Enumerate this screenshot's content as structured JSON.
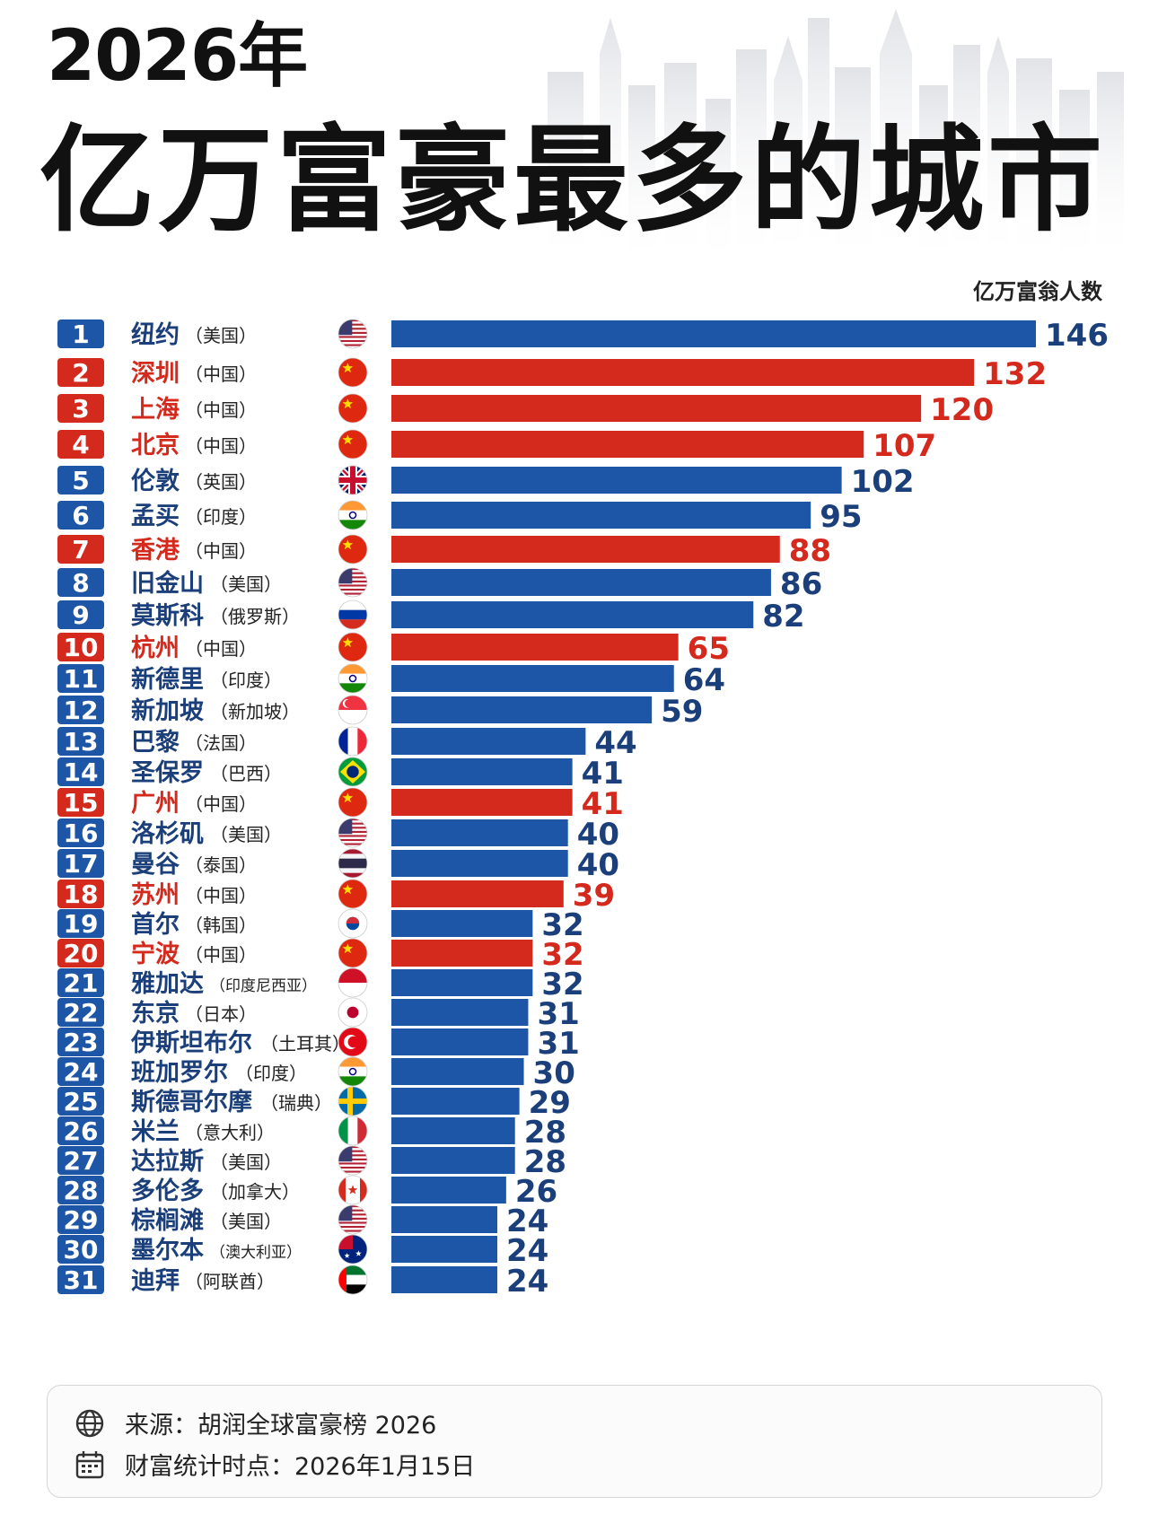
{
  "header": {
    "year_title": "2026年",
    "main_title": "亿万富豪最多的城市"
  },
  "chart_data": {
    "type": "bar",
    "orientation": "horizontal",
    "title": "2026年 亿万富豪最多的城市",
    "value_label": "亿万富翁人数",
    "xlim": [
      0,
      146
    ],
    "grid": false,
    "colors": {
      "china": "#d42a1e",
      "other": "#1d56a6"
    },
    "rows": [
      {
        "rank": "1",
        "city": "纽约",
        "country": "（美国）",
        "value": 146,
        "china": false,
        "flag": "us"
      },
      {
        "rank": "2",
        "city": "深圳",
        "country": "（中国）",
        "value": 132,
        "china": true,
        "flag": "cn"
      },
      {
        "rank": "3",
        "city": "上海",
        "country": "（中国）",
        "value": 120,
        "china": true,
        "flag": "cn"
      },
      {
        "rank": "4",
        "city": "北京",
        "country": "（中国）",
        "value": 107,
        "china": true,
        "flag": "cn"
      },
      {
        "rank": "5",
        "city": "伦敦",
        "country": "（英国）",
        "value": 102,
        "china": false,
        "flag": "uk"
      },
      {
        "rank": "6",
        "city": "孟买",
        "country": "（印度）",
        "value": 95,
        "china": false,
        "flag": "in"
      },
      {
        "rank": "7",
        "city": "香港",
        "country": "（中国）",
        "value": 88,
        "china": true,
        "flag": "cn"
      },
      {
        "rank": "8",
        "city": "旧金山",
        "country": "（美国）",
        "value": 86,
        "china": false,
        "flag": "us"
      },
      {
        "rank": "9",
        "city": "莫斯科",
        "country": "（俄罗斯）",
        "value": 82,
        "china": false,
        "flag": "ru"
      },
      {
        "rank": "10",
        "city": "杭州",
        "country": "（中国）",
        "value": 65,
        "china": true,
        "flag": "cn"
      },
      {
        "rank": "11",
        "city": "新德里",
        "country": "（印度）",
        "value": 64,
        "china": false,
        "flag": "in"
      },
      {
        "rank": "12",
        "city": "新加坡",
        "country": "（新加坡）",
        "value": 59,
        "china": false,
        "flag": "sg"
      },
      {
        "rank": "13",
        "city": "巴黎",
        "country": "（法国）",
        "value": 44,
        "china": false,
        "flag": "fr"
      },
      {
        "rank": "14",
        "city": "圣保罗",
        "country": "（巴西）",
        "value": 41,
        "china": false,
        "flag": "br"
      },
      {
        "rank": "15",
        "city": "广州",
        "country": "（中国）",
        "value": 41,
        "china": true,
        "flag": "cn"
      },
      {
        "rank": "16",
        "city": "洛杉矶",
        "country": "（美国）",
        "value": 40,
        "china": false,
        "flag": "us"
      },
      {
        "rank": "17",
        "city": "曼谷",
        "country": "（泰国）",
        "value": 40,
        "china": false,
        "flag": "th"
      },
      {
        "rank": "18",
        "city": "苏州",
        "country": "（中国）",
        "value": 39,
        "china": true,
        "flag": "cn"
      },
      {
        "rank": "19",
        "city": "首尔",
        "country": "（韩国）",
        "value": 32,
        "china": false,
        "flag": "kr"
      },
      {
        "rank": "20",
        "city": "宁波",
        "country": "（中国）",
        "value": 32,
        "china": true,
        "flag": "cn"
      },
      {
        "rank": "21",
        "city": "雅加达",
        "country": "（印度尼西亚）",
        "value": 32,
        "china": false,
        "flag": "id"
      },
      {
        "rank": "22",
        "city": "东京",
        "country": "（日本）",
        "value": 31,
        "china": false,
        "flag": "jp"
      },
      {
        "rank": "23",
        "city": "伊斯坦布尔",
        "country": "（土耳其）",
        "value": 31,
        "china": false,
        "flag": "tr"
      },
      {
        "rank": "24",
        "city": "班加罗尔",
        "country": "（印度）",
        "value": 30,
        "china": false,
        "flag": "in"
      },
      {
        "rank": "25",
        "city": "斯德哥尔摩",
        "country": "（瑞典）",
        "value": 29,
        "china": false,
        "flag": "se"
      },
      {
        "rank": "26",
        "city": "米兰",
        "country": "（意大利）",
        "value": 28,
        "china": false,
        "flag": "it"
      },
      {
        "rank": "27",
        "city": "达拉斯",
        "country": "（美国）",
        "value": 28,
        "china": false,
        "flag": "us"
      },
      {
        "rank": "28",
        "city": "多伦多",
        "country": "（加拿大）",
        "value": 26,
        "china": false,
        "flag": "ca"
      },
      {
        "rank": "29",
        "city": "棕榈滩",
        "country": "（美国）",
        "value": 24,
        "china": false,
        "flag": "us"
      },
      {
        "rank": "30",
        "city": "墨尔本",
        "country": "（澳大利亚）",
        "value": 24,
        "china": false,
        "flag": "au"
      },
      {
        "rank": "31",
        "city": "迪拜",
        "country": "（阿联酋）",
        "value": 24,
        "china": false,
        "flag": "ae"
      }
    ]
  },
  "footer": {
    "source_icon": "globe-icon",
    "source_text": "来源：胡润全球富豪榜 2026",
    "date_icon": "calendar-icon",
    "date_text": "财富统计时点：2026年1月15日"
  }
}
